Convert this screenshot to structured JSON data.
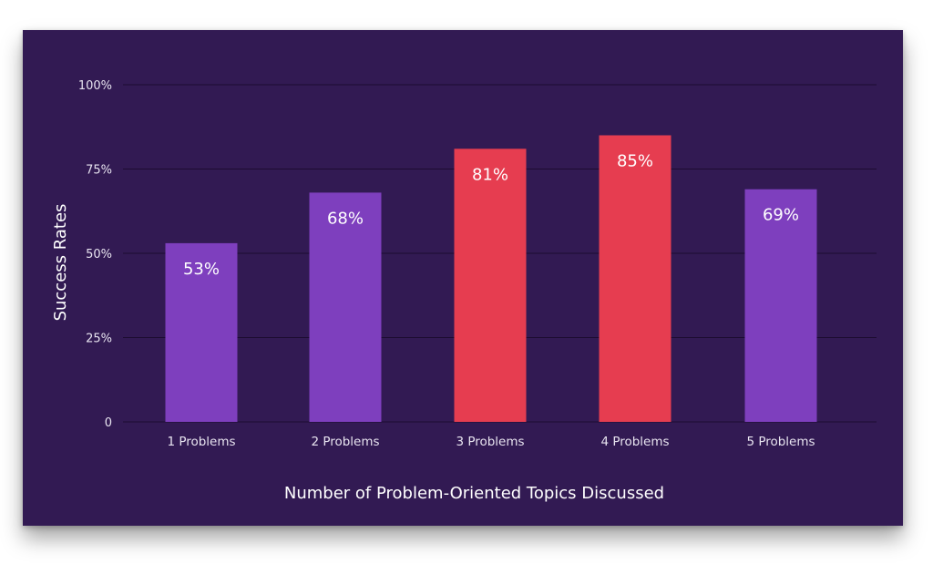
{
  "chart_data": {
    "type": "bar",
    "categories": [
      "1 Problems",
      "2 Problems",
      "3 Problems",
      "4 Problems",
      "5 Problems"
    ],
    "values": [
      53,
      68,
      81,
      85,
      69
    ],
    "value_labels": [
      "53%",
      "68%",
      "81%",
      "85%",
      "69%"
    ],
    "bar_colors": [
      "#7e3fbe",
      "#7e3fbe",
      "#e63d50",
      "#e63d50",
      "#7e3fbe"
    ],
    "xlabel": "Number of Problem-Oriented Topics Discussed",
    "ylabel": "Success Rates",
    "ylim": [
      0,
      100
    ],
    "yticks": [
      0,
      25,
      50,
      75,
      100
    ],
    "ytick_labels": [
      "0",
      "25%",
      "50%",
      "75%",
      "100%"
    ],
    "grid": true,
    "legend": "none",
    "colors": {
      "background": "#321a53",
      "gridline": "#1c0c30",
      "purple_bar": "#7e3fbe",
      "red_bar": "#e63d50",
      "text": "#e8e4f0"
    }
  }
}
